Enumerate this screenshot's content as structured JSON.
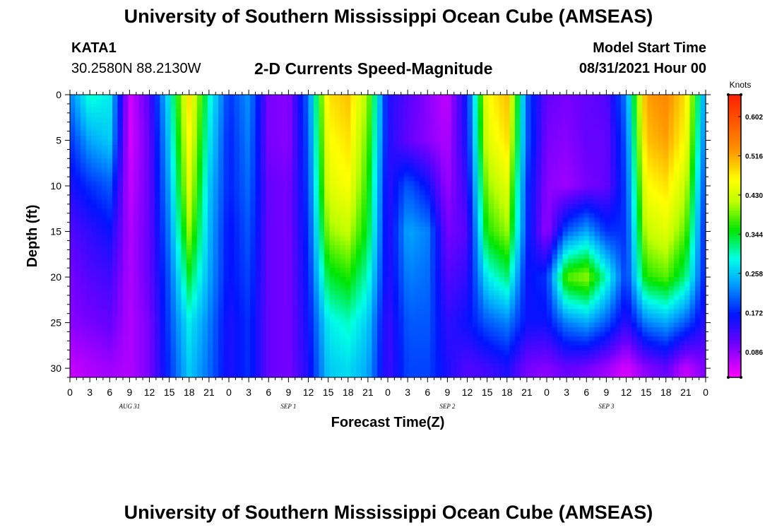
{
  "header": {
    "title_top": "University of Southern Mississippi Ocean Cube (AMSEAS)",
    "title_bottom": "University of Southern Mississippi Ocean Cube (AMSEAS)",
    "station_id": "KATA1",
    "coordinates": "30.2580N  88.2130W",
    "plot_title": "2-D Currents Speed-Magnitude",
    "model_start_label": "Model Start Time",
    "model_start_value": "08/31/2021 Hour 00"
  },
  "chart_data": {
    "type": "heatmap",
    "title": "2-D Currents Speed-Magnitude",
    "xlabel": "Forecast Time(Z)",
    "ylabel": "Depth (ft)",
    "colorbar_units": "Knots",
    "colorbar_ticks": [
      0.086,
      0.172,
      0.258,
      0.344,
      0.43,
      0.516,
      0.602
    ],
    "colorbar_range": [
      0.03,
      0.65
    ],
    "x_range_hours": [
      0,
      96
    ],
    "y_range_ft": [
      0,
      31
    ],
    "y_inverted": true,
    "x_tick_labels": [
      "0",
      "3",
      "6",
      "9",
      "12",
      "15",
      "18",
      "21",
      "0",
      "3",
      "6",
      "9",
      "12",
      "15",
      "18",
      "21",
      "0",
      "3",
      "6",
      "9",
      "12",
      "15",
      "18",
      "21",
      "0",
      "3",
      "6",
      "9",
      "12",
      "15",
      "18",
      "21",
      "0"
    ],
    "y_tick_labels": [
      "0",
      "5",
      "10",
      "15",
      "20",
      "25",
      "30"
    ],
    "day_labels": [
      "AUG 31",
      "SEP 1",
      "SEP 2",
      "SEP 3"
    ],
    "depths_ft": [
      0,
      5,
      10,
      15,
      20,
      25,
      30
    ],
    "hours": [
      0,
      3,
      6,
      9,
      12,
      15,
      18,
      21,
      24,
      27,
      30,
      33,
      36,
      39,
      42,
      45,
      48,
      51,
      54,
      57,
      60,
      63,
      66,
      69,
      72,
      75,
      78,
      81,
      84,
      87,
      90,
      93,
      96
    ],
    "speed_knots": [
      [
        0.22,
        0.3,
        0.28,
        0.05,
        0.12,
        0.28,
        0.48,
        0.3,
        0.18,
        0.23,
        0.1,
        0.09,
        0.21,
        0.48,
        0.5,
        0.4,
        0.15,
        0.12,
        0.09,
        0.06,
        0.17,
        0.46,
        0.5,
        0.2,
        0.11,
        0.1,
        0.11,
        0.12,
        0.22,
        0.52,
        0.54,
        0.48,
        0.22
      ],
      [
        0.18,
        0.24,
        0.26,
        0.05,
        0.11,
        0.26,
        0.46,
        0.28,
        0.17,
        0.22,
        0.1,
        0.09,
        0.2,
        0.46,
        0.48,
        0.38,
        0.15,
        0.11,
        0.09,
        0.07,
        0.16,
        0.44,
        0.48,
        0.2,
        0.1,
        0.09,
        0.11,
        0.11,
        0.2,
        0.5,
        0.52,
        0.46,
        0.2
      ],
      [
        0.15,
        0.18,
        0.2,
        0.06,
        0.11,
        0.24,
        0.44,
        0.26,
        0.17,
        0.21,
        0.11,
        0.1,
        0.19,
        0.44,
        0.46,
        0.36,
        0.14,
        0.2,
        0.16,
        0.08,
        0.14,
        0.4,
        0.44,
        0.18,
        0.09,
        0.08,
        0.1,
        0.11,
        0.19,
        0.46,
        0.48,
        0.42,
        0.18
      ],
      [
        0.12,
        0.14,
        0.16,
        0.07,
        0.11,
        0.22,
        0.4,
        0.25,
        0.16,
        0.2,
        0.11,
        0.1,
        0.18,
        0.4,
        0.42,
        0.34,
        0.14,
        0.24,
        0.22,
        0.1,
        0.12,
        0.36,
        0.4,
        0.18,
        0.08,
        0.2,
        0.24,
        0.18,
        0.18,
        0.42,
        0.44,
        0.38,
        0.16
      ],
      [
        0.1,
        0.12,
        0.13,
        0.07,
        0.11,
        0.2,
        0.34,
        0.24,
        0.16,
        0.19,
        0.11,
        0.1,
        0.17,
        0.34,
        0.36,
        0.3,
        0.14,
        0.22,
        0.21,
        0.12,
        0.14,
        0.28,
        0.32,
        0.16,
        0.18,
        0.38,
        0.4,
        0.3,
        0.18,
        0.36,
        0.38,
        0.32,
        0.16
      ],
      [
        0.09,
        0.1,
        0.11,
        0.07,
        0.1,
        0.19,
        0.28,
        0.22,
        0.15,
        0.18,
        0.11,
        0.1,
        0.16,
        0.28,
        0.3,
        0.26,
        0.13,
        0.2,
        0.2,
        0.14,
        0.16,
        0.2,
        0.22,
        0.16,
        0.16,
        0.22,
        0.24,
        0.2,
        0.14,
        0.22,
        0.24,
        0.2,
        0.14
      ],
      [
        0.06,
        0.07,
        0.08,
        0.07,
        0.1,
        0.18,
        0.26,
        0.21,
        0.15,
        0.18,
        0.11,
        0.1,
        0.15,
        0.26,
        0.27,
        0.24,
        0.13,
        0.19,
        0.19,
        0.15,
        0.12,
        0.13,
        0.15,
        0.1,
        0.09,
        0.11,
        0.1,
        0.08,
        0.05,
        0.09,
        0.11,
        0.06,
        0.1
      ]
    ]
  }
}
